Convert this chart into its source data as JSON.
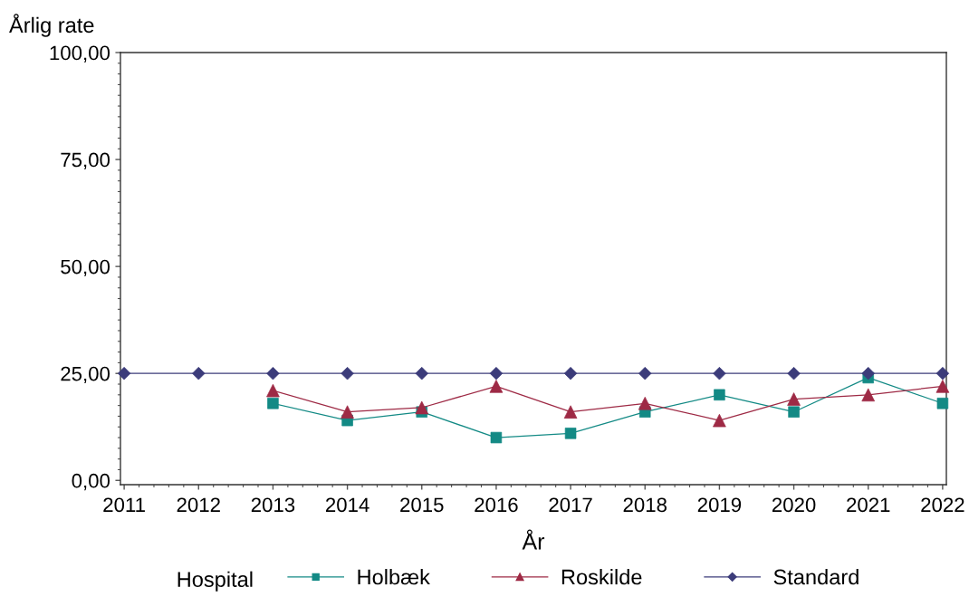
{
  "chart_data": {
    "type": "line",
    "xlabel": "År",
    "ylabel": "Årlig rate",
    "legend_title": "Hospital",
    "legend": "bottom",
    "line_style": "solid",
    "x": [
      2011,
      2012,
      2013,
      2014,
      2015,
      2016,
      2017,
      2018,
      2019,
      2020,
      2021,
      2022
    ],
    "series": [
      {
        "name": "Holbæk",
        "color": "#138a85",
        "marker": "square",
        "values": [
          null,
          null,
          18,
          14,
          16,
          10,
          11,
          16,
          20,
          16,
          24,
          18
        ]
      },
      {
        "name": "Roskilde",
        "color": "#9e2a45",
        "marker": "triangle",
        "values": [
          null,
          null,
          21,
          16,
          17,
          22,
          16,
          18,
          14,
          19,
          20,
          22
        ]
      },
      {
        "name": "Standard",
        "color": "#3c3c7a",
        "marker": "diamond",
        "values": [
          25,
          25,
          25,
          25,
          25,
          25,
          25,
          25,
          25,
          25,
          25,
          25
        ]
      }
    ],
    "xlim": [
      2010.95,
      2022.05
    ],
    "ylim": [
      -1,
      100
    ],
    "xticks": [
      2011,
      2012,
      2013,
      2014,
      2015,
      2016,
      2017,
      2018,
      2019,
      2020,
      2021,
      2022,
      {
        "value": 2011.2,
        "label": null
      },
      {
        "value": 2011.4,
        "label": null
      },
      {
        "value": 2011.6,
        "label": null
      },
      {
        "value": 2011.8,
        "label": null
      },
      {
        "value": 2012.2,
        "label": null
      },
      {
        "value": 2012.4,
        "label": null
      },
      {
        "value": 2012.6,
        "label": null
      },
      {
        "value": 2012.8,
        "label": null
      },
      {
        "value": 2013.2,
        "label": null
      },
      {
        "value": 2013.4,
        "label": null
      },
      {
        "value": 2013.6,
        "label": null
      },
      {
        "value": 2013.8,
        "label": null
      },
      {
        "value": 2014.2,
        "label": null
      },
      {
        "value": 2014.4,
        "label": null
      },
      {
        "value": 2014.6,
        "label": null
      },
      {
        "value": 2014.8,
        "label": null
      },
      {
        "value": 2015.2,
        "label": null
      },
      {
        "value": 2015.4,
        "label": null
      },
      {
        "value": 2015.6,
        "label": null
      },
      {
        "value": 2015.8,
        "label": null
      },
      {
        "value": 2016.2,
        "label": null
      },
      {
        "value": 2016.4,
        "label": null
      },
      {
        "value": 2016.6,
        "label": null
      },
      {
        "value": 2016.8,
        "label": null
      },
      {
        "value": 2017.2,
        "label": null
      },
      {
        "value": 2017.4,
        "label": null
      },
      {
        "value": 2017.6,
        "label": null
      },
      {
        "value": 2017.8,
        "label": null
      },
      {
        "value": 2018.2,
        "label": null
      },
      {
        "value": 2018.4,
        "label": null
      },
      {
        "value": 2018.6,
        "label": null
      },
      {
        "value": 2018.8,
        "label": null
      },
      {
        "value": 2019.2,
        "label": null
      },
      {
        "value": 2019.4,
        "label": null
      },
      {
        "value": 2019.6,
        "label": null
      },
      {
        "value": 2019.8,
        "label": null
      },
      {
        "value": 2020.2,
        "label": null
      },
      {
        "value": 2020.4,
        "label": null
      },
      {
        "value": 2020.6,
        "label": null
      },
      {
        "value": 2020.8,
        "label": null
      },
      {
        "value": 2021.2,
        "label": null
      },
      {
        "value": 2021.4,
        "label": null
      },
      {
        "value": 2021.6,
        "label": null
      },
      {
        "value": 2021.8,
        "label": null
      }
    ],
    "yticks": [
      {
        "value": 0,
        "label": "0,00"
      },
      {
        "value": 25,
        "label": "25,00"
      },
      {
        "value": 50,
        "label": "50,00"
      },
      {
        "value": 75,
        "label": "75,00"
      },
      {
        "value": 100,
        "label": "100,00"
      },
      {
        "value": 2.5,
        "label": null
      },
      {
        "value": 5,
        "label": null
      },
      {
        "value": 7.5,
        "label": null
      },
      {
        "value": 10,
        "label": null
      },
      {
        "value": 12.5,
        "label": null
      },
      {
        "value": 15,
        "label": null
      },
      {
        "value": 17.5,
        "label": null
      },
      {
        "value": 20,
        "label": null
      },
      {
        "value": 22.5,
        "label": null
      },
      {
        "value": 27.5,
        "label": null
      },
      {
        "value": 30,
        "label": null
      },
      {
        "value": 32.5,
        "label": null
      },
      {
        "value": 35,
        "label": null
      },
      {
        "value": 37.5,
        "label": null
      },
      {
        "value": 40,
        "label": null
      },
      {
        "value": 42.5,
        "label": null
      },
      {
        "value": 45,
        "label": null
      },
      {
        "value": 47.5,
        "label": null
      },
      {
        "value": 52.5,
        "label": null
      },
      {
        "value": 55,
        "label": null
      },
      {
        "value": 57.5,
        "label": null
      },
      {
        "value": 60,
        "label": null
      },
      {
        "value": 62.5,
        "label": null
      },
      {
        "value": 65,
        "label": null
      },
      {
        "value": 67.5,
        "label": null
      },
      {
        "value": 70,
        "label": null
      },
      {
        "value": 72.5,
        "label": null
      },
      {
        "value": 77.5,
        "label": null
      },
      {
        "value": 80,
        "label": null
      },
      {
        "value": 82.5,
        "label": null
      },
      {
        "value": 85,
        "label": null
      },
      {
        "value": 87.5,
        "label": null
      },
      {
        "value": 90,
        "label": null
      },
      {
        "value": 92.5,
        "label": null
      },
      {
        "value": 95,
        "label": null
      },
      {
        "value": 97.5,
        "label": null
      }
    ]
  }
}
